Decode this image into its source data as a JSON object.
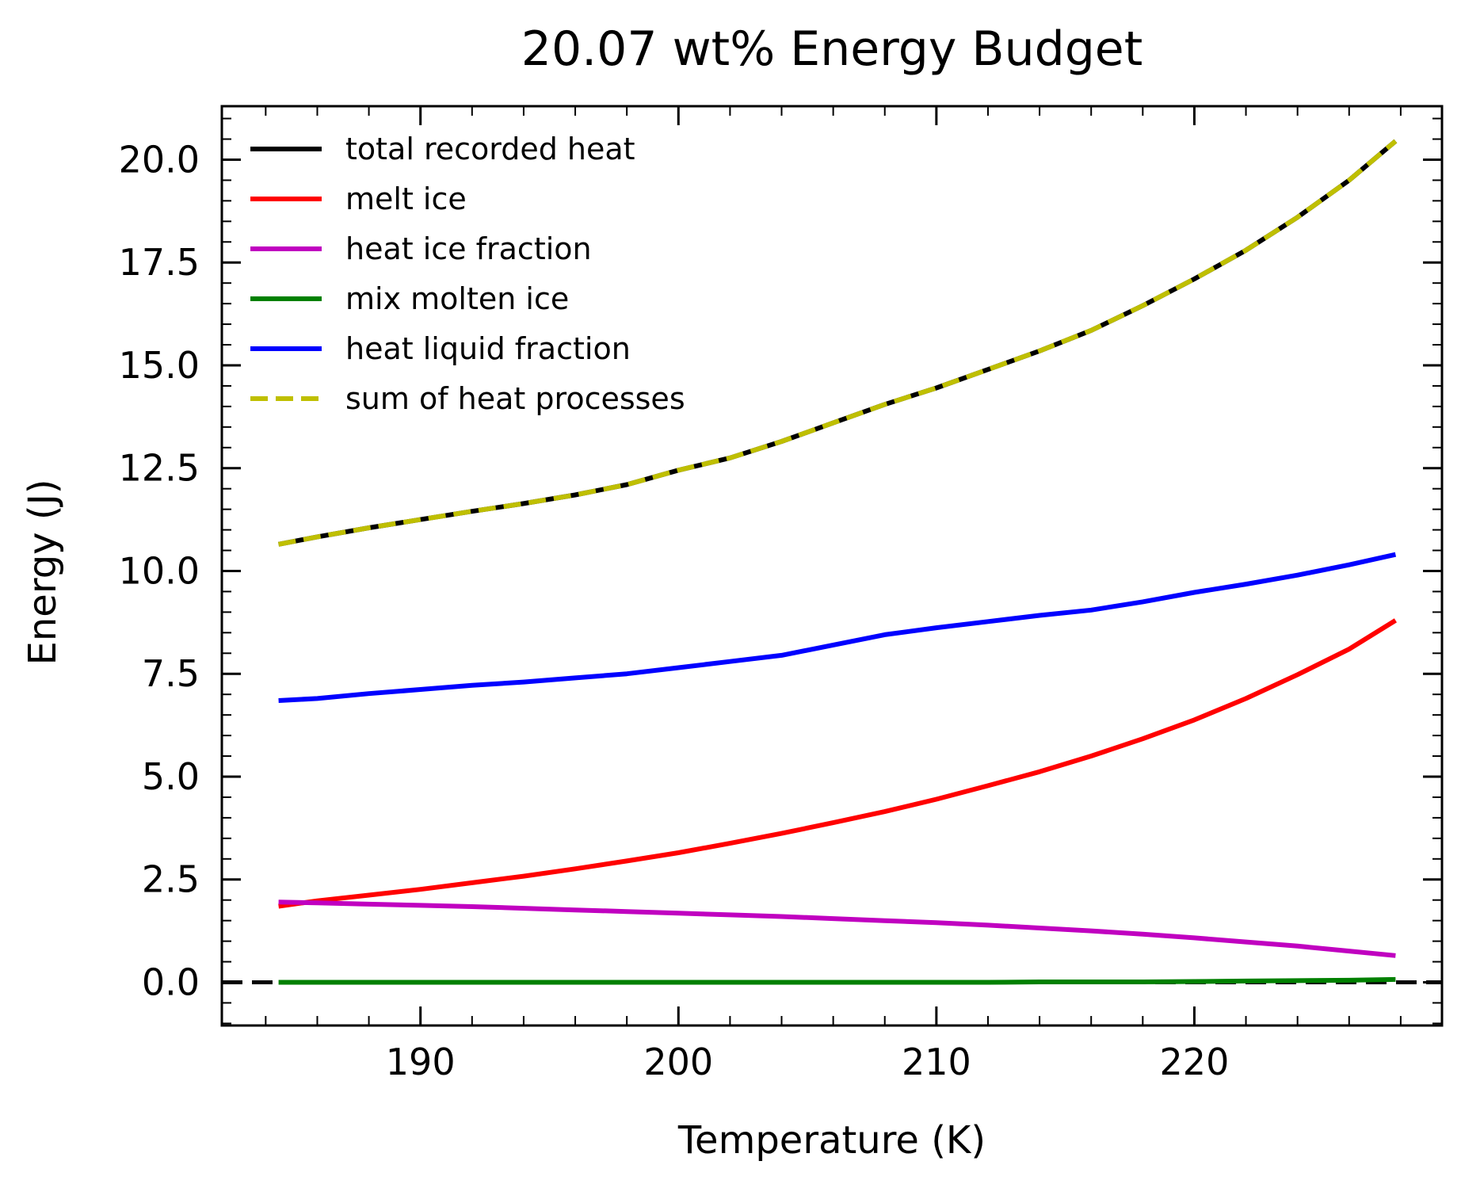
{
  "chart_data": {
    "type": "line",
    "title": "20.07 wt% Energy Budget",
    "xlabel": "Temperature (K)",
    "ylabel": "Energy (J)",
    "xlim": [
      182.3,
      229.6
    ],
    "ylim": [
      -1.05,
      21.3
    ],
    "xticks": [
      190,
      200,
      210,
      220
    ],
    "xtick_labels": [
      "190",
      "200",
      "210",
      "220"
    ],
    "yticks": [
      0.0,
      2.5,
      5.0,
      7.5,
      10.0,
      12.5,
      15.0,
      17.5,
      20.0
    ],
    "ytick_labels": [
      "0.0",
      "2.5",
      "5.0",
      "7.5",
      "10.0",
      "12.5",
      "15.0",
      "17.5",
      "20.0"
    ],
    "x_minor_step": 2,
    "y_minor_step": 0.5,
    "ticks_direction": "in",
    "ticks_on_all_sides": true,
    "grid": false,
    "legend_position": "upper-left",
    "reference_line": {
      "y": 0,
      "color": "#000000",
      "style": "dashed"
    },
    "x": [
      184.5,
      186,
      188,
      190,
      192,
      194,
      196,
      198,
      200,
      202,
      204,
      206,
      208,
      210,
      212,
      214,
      216,
      218,
      220,
      222,
      224,
      226,
      227.8
    ],
    "series": [
      {
        "name": "total recorded heat",
        "color": "#000000",
        "style": "solid",
        "values": [
          10.65,
          10.83,
          11.05,
          11.25,
          11.45,
          11.64,
          11.85,
          12.1,
          12.45,
          12.75,
          13.15,
          13.6,
          14.05,
          14.45,
          14.9,
          15.35,
          15.85,
          16.45,
          17.1,
          17.8,
          18.6,
          19.5,
          20.45
        ]
      },
      {
        "name": "melt ice",
        "color": "#ff0000",
        "style": "solid",
        "values": [
          1.85,
          1.98,
          2.12,
          2.26,
          2.42,
          2.58,
          2.76,
          2.95,
          3.15,
          3.38,
          3.62,
          3.88,
          4.15,
          4.45,
          4.78,
          5.12,
          5.5,
          5.92,
          6.38,
          6.9,
          7.48,
          8.1,
          8.8
        ]
      },
      {
        "name": "heat ice fraction",
        "color": "#c000c0",
        "style": "solid",
        "values": [
          1.95,
          1.93,
          1.9,
          1.87,
          1.84,
          1.8,
          1.76,
          1.72,
          1.68,
          1.64,
          1.6,
          1.55,
          1.5,
          1.45,
          1.39,
          1.32,
          1.25,
          1.17,
          1.08,
          0.98,
          0.88,
          0.76,
          0.65
        ]
      },
      {
        "name": "mix molten ice",
        "color": "#008000",
        "style": "solid",
        "values": [
          0.0,
          0.0,
          0.0,
          0.0,
          0.0,
          0.0,
          0.0,
          0.0,
          0.0,
          0.0,
          0.0,
          0.0,
          0.0,
          0.0,
          0.0,
          0.01,
          0.01,
          0.01,
          0.02,
          0.03,
          0.04,
          0.05,
          0.07
        ]
      },
      {
        "name": "heat liquid fraction",
        "color": "#0000ff",
        "style": "solid",
        "values": [
          6.85,
          6.9,
          7.02,
          7.12,
          7.22,
          7.3,
          7.4,
          7.5,
          7.65,
          7.8,
          7.95,
          8.2,
          8.45,
          8.62,
          8.77,
          8.92,
          9.05,
          9.25,
          9.48,
          9.68,
          9.9,
          10.15,
          10.4
        ]
      },
      {
        "name": "sum of heat processes",
        "color": "#bfbf00",
        "style": "dashed",
        "values": [
          10.65,
          10.83,
          11.05,
          11.25,
          11.45,
          11.64,
          11.85,
          12.1,
          12.45,
          12.75,
          13.15,
          13.6,
          14.05,
          14.45,
          14.9,
          15.35,
          15.85,
          16.45,
          17.1,
          17.8,
          18.6,
          19.5,
          20.45
        ]
      }
    ]
  }
}
